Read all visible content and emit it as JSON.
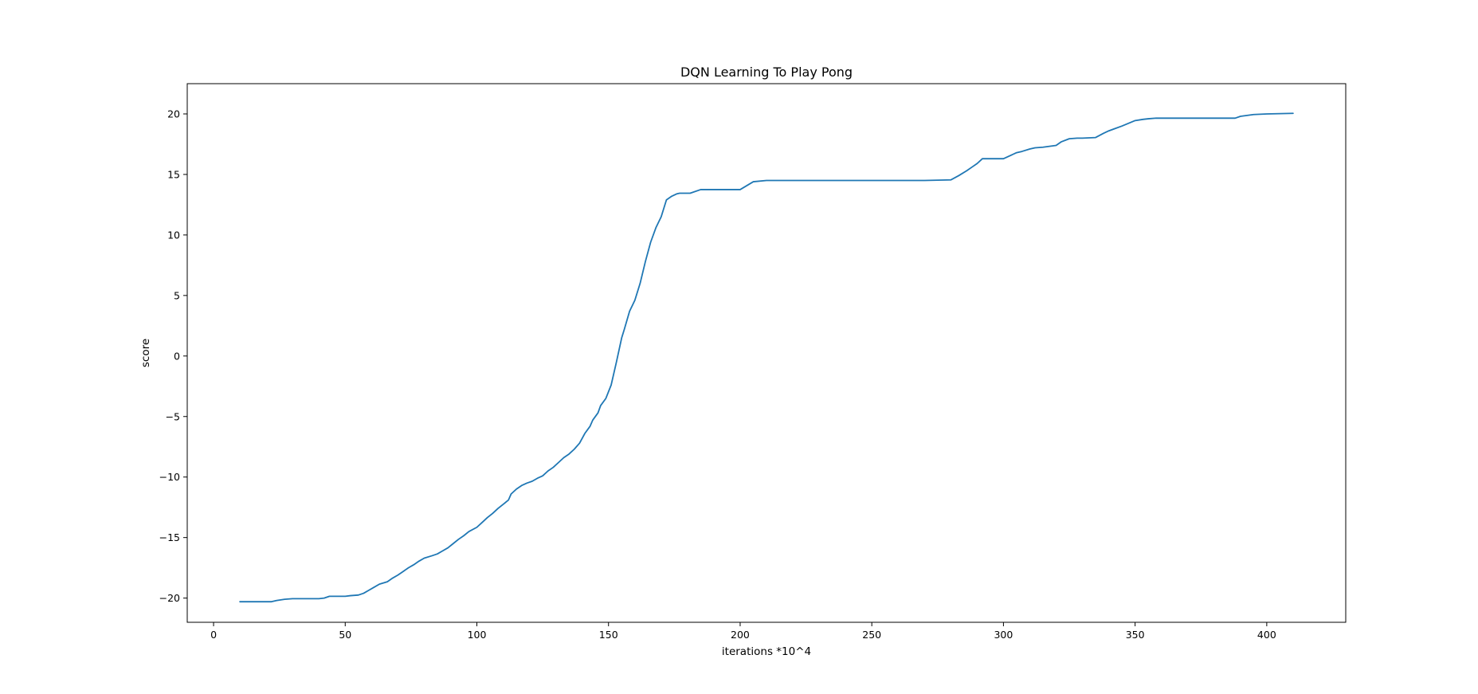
{
  "chart_data": {
    "type": "line",
    "title": "DQN Learning To Play Pong",
    "xlabel": "iterations *10^4",
    "ylabel": "score",
    "xlim": [
      -10,
      430
    ],
    "ylim": [
      -22,
      22.5
    ],
    "xticks": [
      0,
      50,
      100,
      150,
      200,
      250,
      300,
      350,
      400
    ],
    "yticks": [
      -20,
      -15,
      -10,
      -5,
      0,
      5,
      10,
      15,
      20
    ],
    "xtick_labels": [
      "0",
      "50",
      "100",
      "150",
      "200",
      "250",
      "300",
      "350",
      "400"
    ],
    "ytick_labels": [
      "−20",
      "−15",
      "−10",
      "−5",
      "0",
      "5",
      "10",
      "15",
      "20"
    ],
    "grid": false,
    "legend": "none",
    "series": [
      {
        "color": "#1f77b4",
        "x": [
          10,
          22,
          24,
          27,
          30,
          35,
          40,
          42,
          44,
          47,
          50,
          52,
          55,
          57,
          59,
          61,
          63,
          66,
          68,
          70,
          72,
          74,
          76,
          78,
          80,
          83,
          85,
          87,
          89,
          91,
          93,
          95,
          97,
          100,
          102,
          104,
          106,
          108,
          110,
          112,
          113,
          115,
          117,
          119,
          121,
          123,
          125,
          127,
          129,
          131,
          133,
          135,
          137,
          139,
          141,
          143,
          144,
          146,
          147,
          149,
          151,
          153,
          155,
          156,
          158,
          160,
          162,
          164,
          166,
          168,
          170,
          172,
          174,
          176,
          177,
          179,
          181,
          185,
          190,
          195,
          200,
          205,
          210,
          212,
          215,
          220,
          230,
          250,
          270,
          280,
          283,
          286,
          288,
          290,
          292,
          295,
          300,
          305,
          307,
          310,
          312,
          315,
          320,
          322,
          325,
          328,
          330,
          335,
          338,
          340,
          345,
          350,
          353,
          355,
          358,
          370,
          388,
          390,
          395,
          400,
          410
        ],
        "y": [
          -20.3,
          -20.3,
          -20.2,
          -20.1,
          -20.05,
          -20.05,
          -20.05,
          -20.0,
          -19.85,
          -19.85,
          -19.85,
          -19.8,
          -19.75,
          -19.6,
          -19.35,
          -19.1,
          -18.85,
          -18.65,
          -18.35,
          -18.1,
          -17.8,
          -17.5,
          -17.25,
          -16.95,
          -16.7,
          -16.5,
          -16.35,
          -16.1,
          -15.85,
          -15.5,
          -15.15,
          -14.85,
          -14.5,
          -14.15,
          -13.75,
          -13.35,
          -13.0,
          -12.6,
          -12.25,
          -11.9,
          -11.4,
          -11.0,
          -10.7,
          -10.5,
          -10.35,
          -10.1,
          -9.9,
          -9.5,
          -9.2,
          -8.8,
          -8.4,
          -8.1,
          -7.7,
          -7.2,
          -6.4,
          -5.8,
          -5.3,
          -4.7,
          -4.1,
          -3.5,
          -2.4,
          -0.5,
          1.5,
          2.2,
          3.7,
          4.6,
          6.0,
          7.8,
          9.4,
          10.6,
          11.5,
          12.9,
          13.2,
          13.4,
          13.45,
          13.45,
          13.45,
          13.75,
          13.75,
          13.75,
          13.75,
          14.4,
          14.5,
          14.5,
          14.5,
          14.5,
          14.5,
          14.5,
          14.5,
          14.55,
          14.9,
          15.3,
          15.6,
          15.9,
          16.3,
          16.3,
          16.3,
          16.8,
          16.9,
          17.1,
          17.2,
          17.25,
          17.4,
          17.7,
          17.95,
          18.0,
          18.0,
          18.05,
          18.4,
          18.6,
          19.0,
          19.45,
          19.55,
          19.6,
          19.65,
          19.65,
          19.65,
          19.8,
          19.95,
          20.0,
          20.05
        ]
      }
    ]
  }
}
